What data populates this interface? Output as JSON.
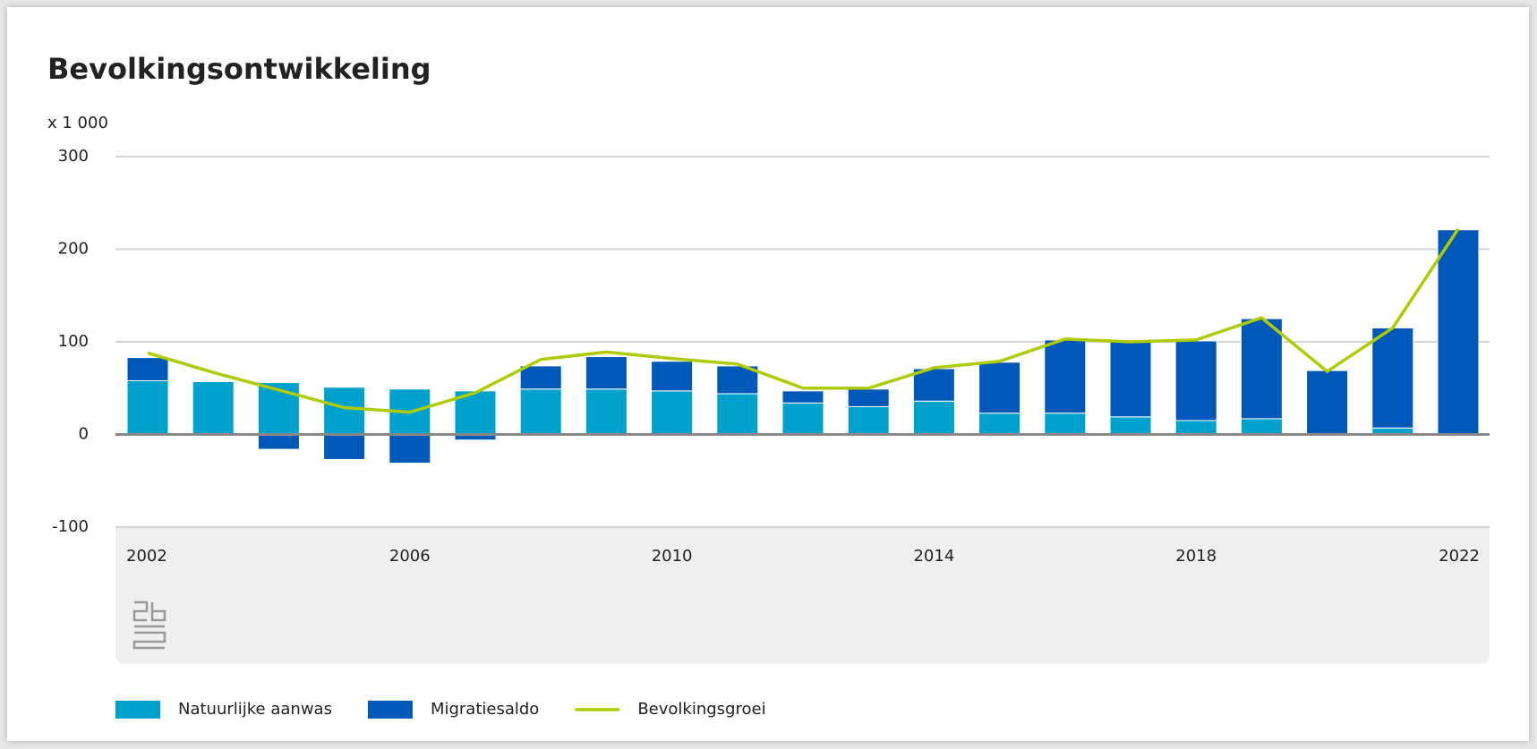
{
  "chart_data": {
    "type": "stacked-bar-line",
    "title": "Bevolkingsontwikkeling",
    "unit_label": "x 1 000",
    "x": [
      2002,
      2003,
      2004,
      2005,
      2006,
      2007,
      2008,
      2009,
      2010,
      2011,
      2012,
      2013,
      2014,
      2015,
      2016,
      2017,
      2018,
      2019,
      2020,
      2021,
      2022
    ],
    "xticks": [
      2002,
      2006,
      2010,
      2014,
      2018,
      2022
    ],
    "ylim": [
      -100,
      300
    ],
    "yticks": [
      -100,
      0,
      100,
      200,
      300
    ],
    "grid": true,
    "series": [
      {
        "name": "Natuurlijke aanwas",
        "type": "bar",
        "color": "#00a1cd",
        "values": [
          58,
          57,
          56,
          51,
          49,
          47,
          49,
          49,
          47,
          44,
          34,
          30,
          36,
          23,
          23,
          19,
          15,
          17,
          1,
          7,
          0
        ]
      },
      {
        "name": "Migratiesaldo",
        "type": "bar",
        "color": "#0058b8",
        "values": [
          25,
          1,
          -16,
          -27,
          -31,
          -6,
          25,
          35,
          32,
          30,
          13,
          19,
          35,
          55,
          79,
          81,
          86,
          108,
          68,
          108,
          221
        ]
      },
      {
        "name": "Bevolkingsgroei",
        "type": "line",
        "color": "#afcb05",
        "values": [
          88,
          67,
          48,
          29,
          24,
          45,
          81,
          89,
          82,
          76,
          50,
          50,
          72,
          79,
          103,
          100,
          102,
          126,
          68,
          115,
          222
        ]
      }
    ]
  }
}
